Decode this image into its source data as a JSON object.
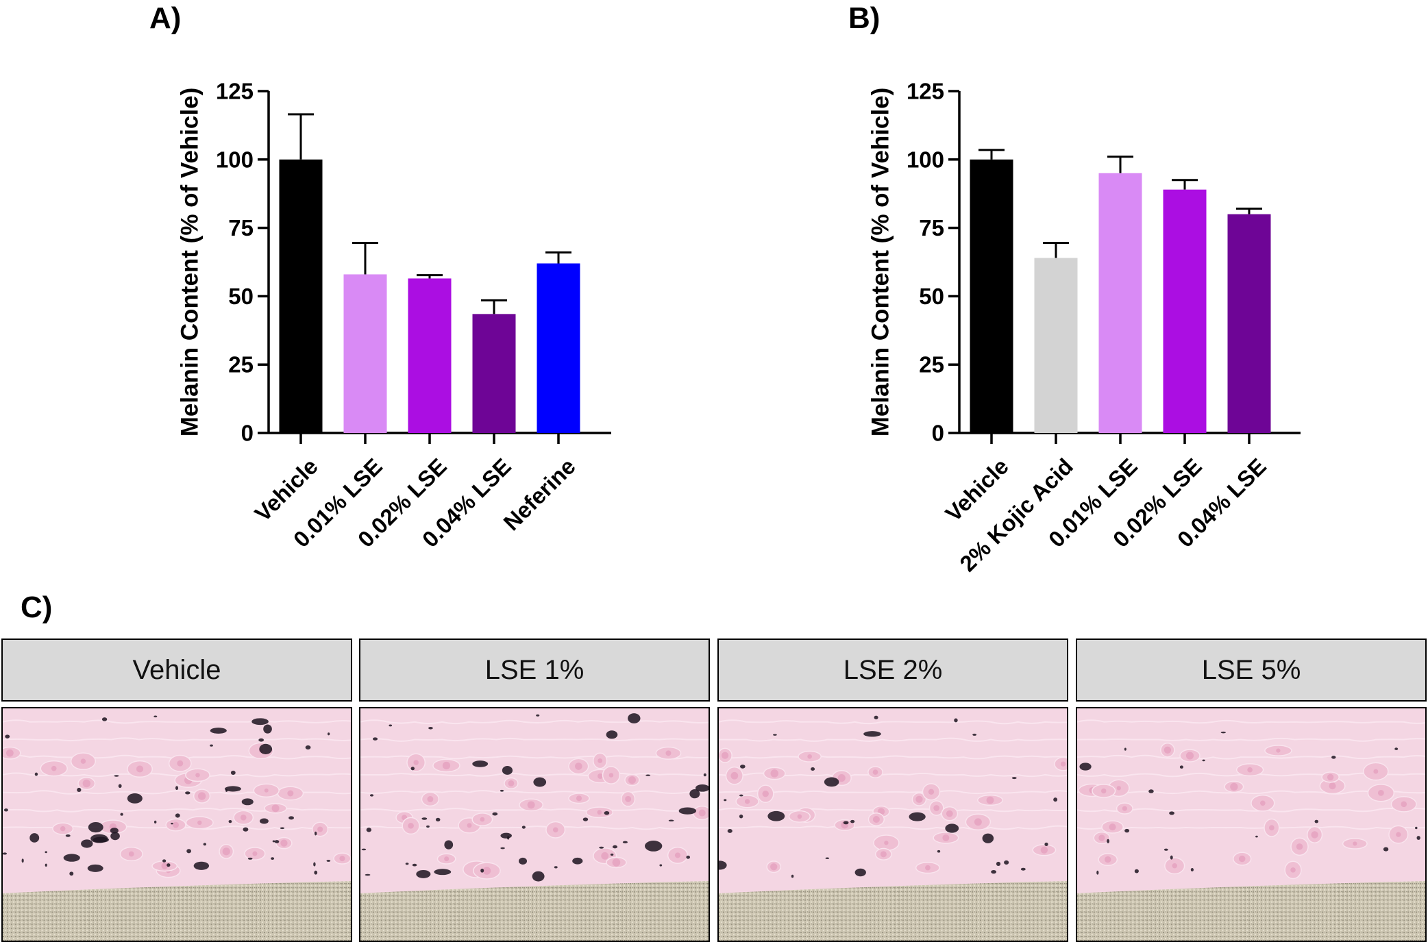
{
  "panels": {
    "a_label": "A)",
    "b_label": "B)",
    "c_label": "C)"
  },
  "chart_data": [
    {
      "type": "bar",
      "panel": "A)",
      "title": "",
      "xlabel": "",
      "ylabel": "Melanin Content (% of Vehicle)",
      "ylim": [
        0,
        125
      ],
      "yticks": [
        0,
        25,
        50,
        75,
        100,
        125
      ],
      "grid": false,
      "categories": [
        "Vehicle",
        "0.01% LSE",
        "0.02% LSE",
        "0.04% LSE",
        "Neferine"
      ],
      "values": [
        100,
        58,
        56.5,
        43.5,
        62
      ],
      "errors": [
        16.5,
        11.5,
        1.2,
        5,
        4
      ],
      "colors": [
        "#000000",
        "#d98af5",
        "#ab0ee2",
        "#6e0596",
        "#0000ff"
      ]
    },
    {
      "type": "bar",
      "panel": "B)",
      "title": "",
      "xlabel": "",
      "ylabel": "Melanin Content (% of Vehicle)",
      "ylim": [
        0,
        125
      ],
      "yticks": [
        0,
        25,
        50,
        75,
        100,
        125
      ],
      "grid": false,
      "categories": [
        "Vehicle",
        "2% Kojic Acid",
        "0.01% LSE",
        "0.02% LSE",
        "0.04% LSE"
      ],
      "values": [
        100,
        64,
        95,
        89,
        80
      ],
      "errors": [
        3.5,
        5.5,
        6,
        3.5,
        2
      ],
      "colors": [
        "#000000",
        "#d3d3d3",
        "#d98af5",
        "#ab0ee2",
        "#6e0596"
      ]
    }
  ],
  "tiles": [
    {
      "label": "Vehicle"
    },
    {
      "label": "LSE 1%"
    },
    {
      "label": "LSE 2%"
    },
    {
      "label": "LSE 5%"
    }
  ]
}
